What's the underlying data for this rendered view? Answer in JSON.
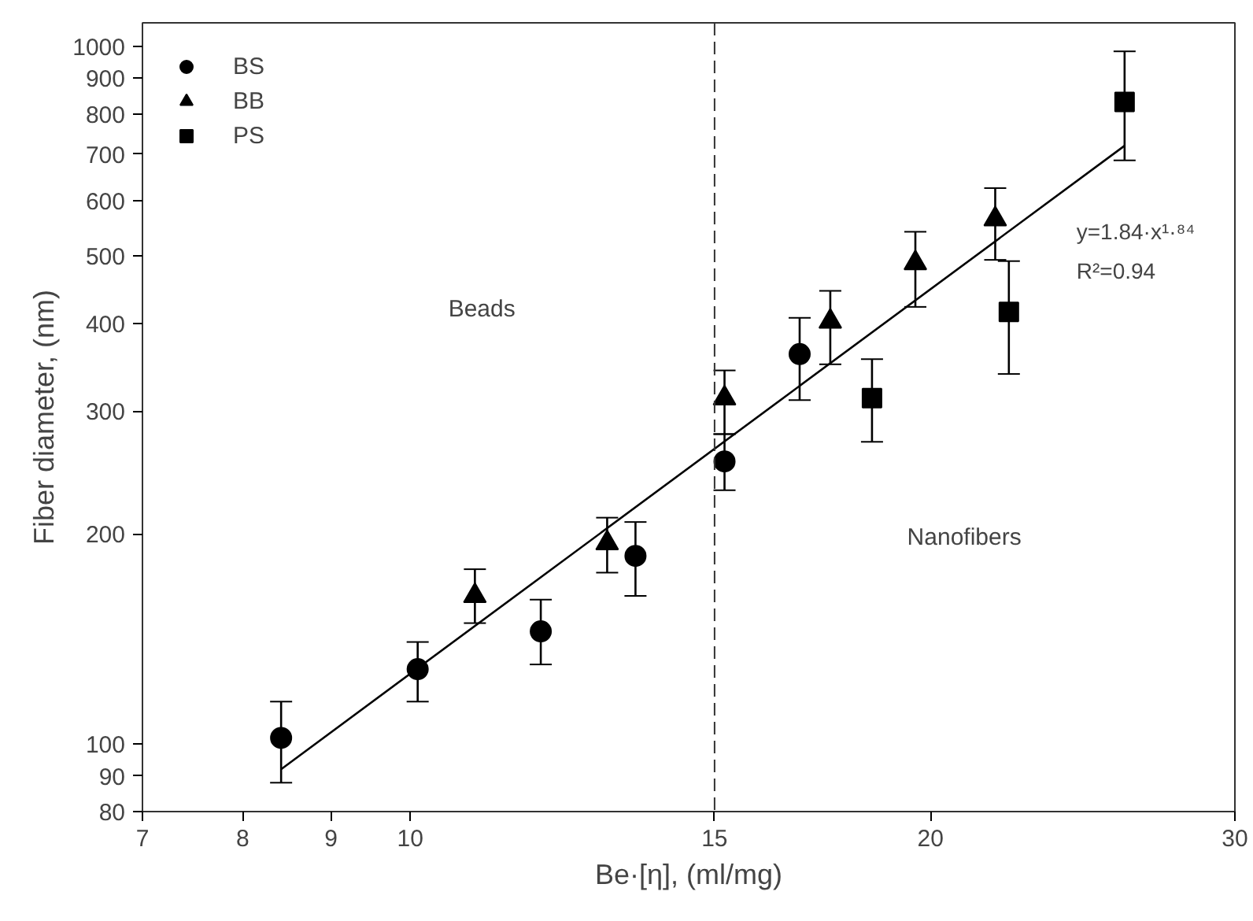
{
  "chart_data": {
    "type": "scatter",
    "xlabel": "Be·[η], (ml/mg)",
    "ylabel": "Fiber diameter, (nm)",
    "log": "xy",
    "grid": false,
    "legend": "top left",
    "xlim": [
      7,
      30
    ],
    "xticks": [
      7,
      8,
      9,
      10,
      15,
      20,
      30
    ],
    "ylim": [
      80,
      1080
    ],
    "yticks": [
      80,
      90,
      100,
      200,
      300,
      400,
      500,
      600,
      700,
      800,
      900,
      1000
    ],
    "series": [
      {
        "name": "BS",
        "color": "#000000",
        "marker": "circle",
        "x": [
          8.42,
          10.1,
          11.9,
          13.5,
          15.2,
          16.8
        ],
        "values": [
          102,
          128,
          145,
          186,
          254,
          362
        ],
        "errors": [
          [
            88,
            115
          ],
          [
            115,
            140
          ],
          [
            130,
            161
          ],
          [
            163,
            208
          ],
          [
            231,
            278
          ],
          [
            311,
            408
          ]
        ]
      },
      {
        "name": "BB",
        "color": "#000000",
        "marker": "triangle",
        "x": [
          10.9,
          13.0,
          15.2,
          17.5,
          19.6,
          21.8
        ],
        "values": [
          163,
          194,
          313,
          403,
          489,
          565
        ],
        "errors": [
          [
            149,
            178
          ],
          [
            176,
            211
          ],
          [
            278,
            343
          ],
          [
            350,
            446
          ],
          [
            423,
            542
          ],
          [
            494,
            626
          ]
        ]
      },
      {
        "name": "PS",
        "color": "#000000",
        "marker": "square",
        "x": [
          18.5,
          22.2,
          25.9
        ],
        "values": [
          313,
          416,
          832
        ],
        "errors": [
          [
            271,
            356
          ],
          [
            339,
            492
          ],
          [
            686,
            983
          ]
        ]
      },
      {
        "type": "line",
        "color": "#000000",
        "marker": "none",
        "line_style": "solid",
        "x": [
          8.42,
          25.9
        ],
        "values": [
          92,
          720
        ]
      }
    ],
    "ref_lines": [
      {
        "axis": "x",
        "value": 15,
        "color": "#333333",
        "line_style": "dashed"
      }
    ],
    "annotations": [
      "Beads",
      "Nanofibers",
      "y=1.84·x¹·⁸⁴",
      "R²=0.94"
    ]
  }
}
